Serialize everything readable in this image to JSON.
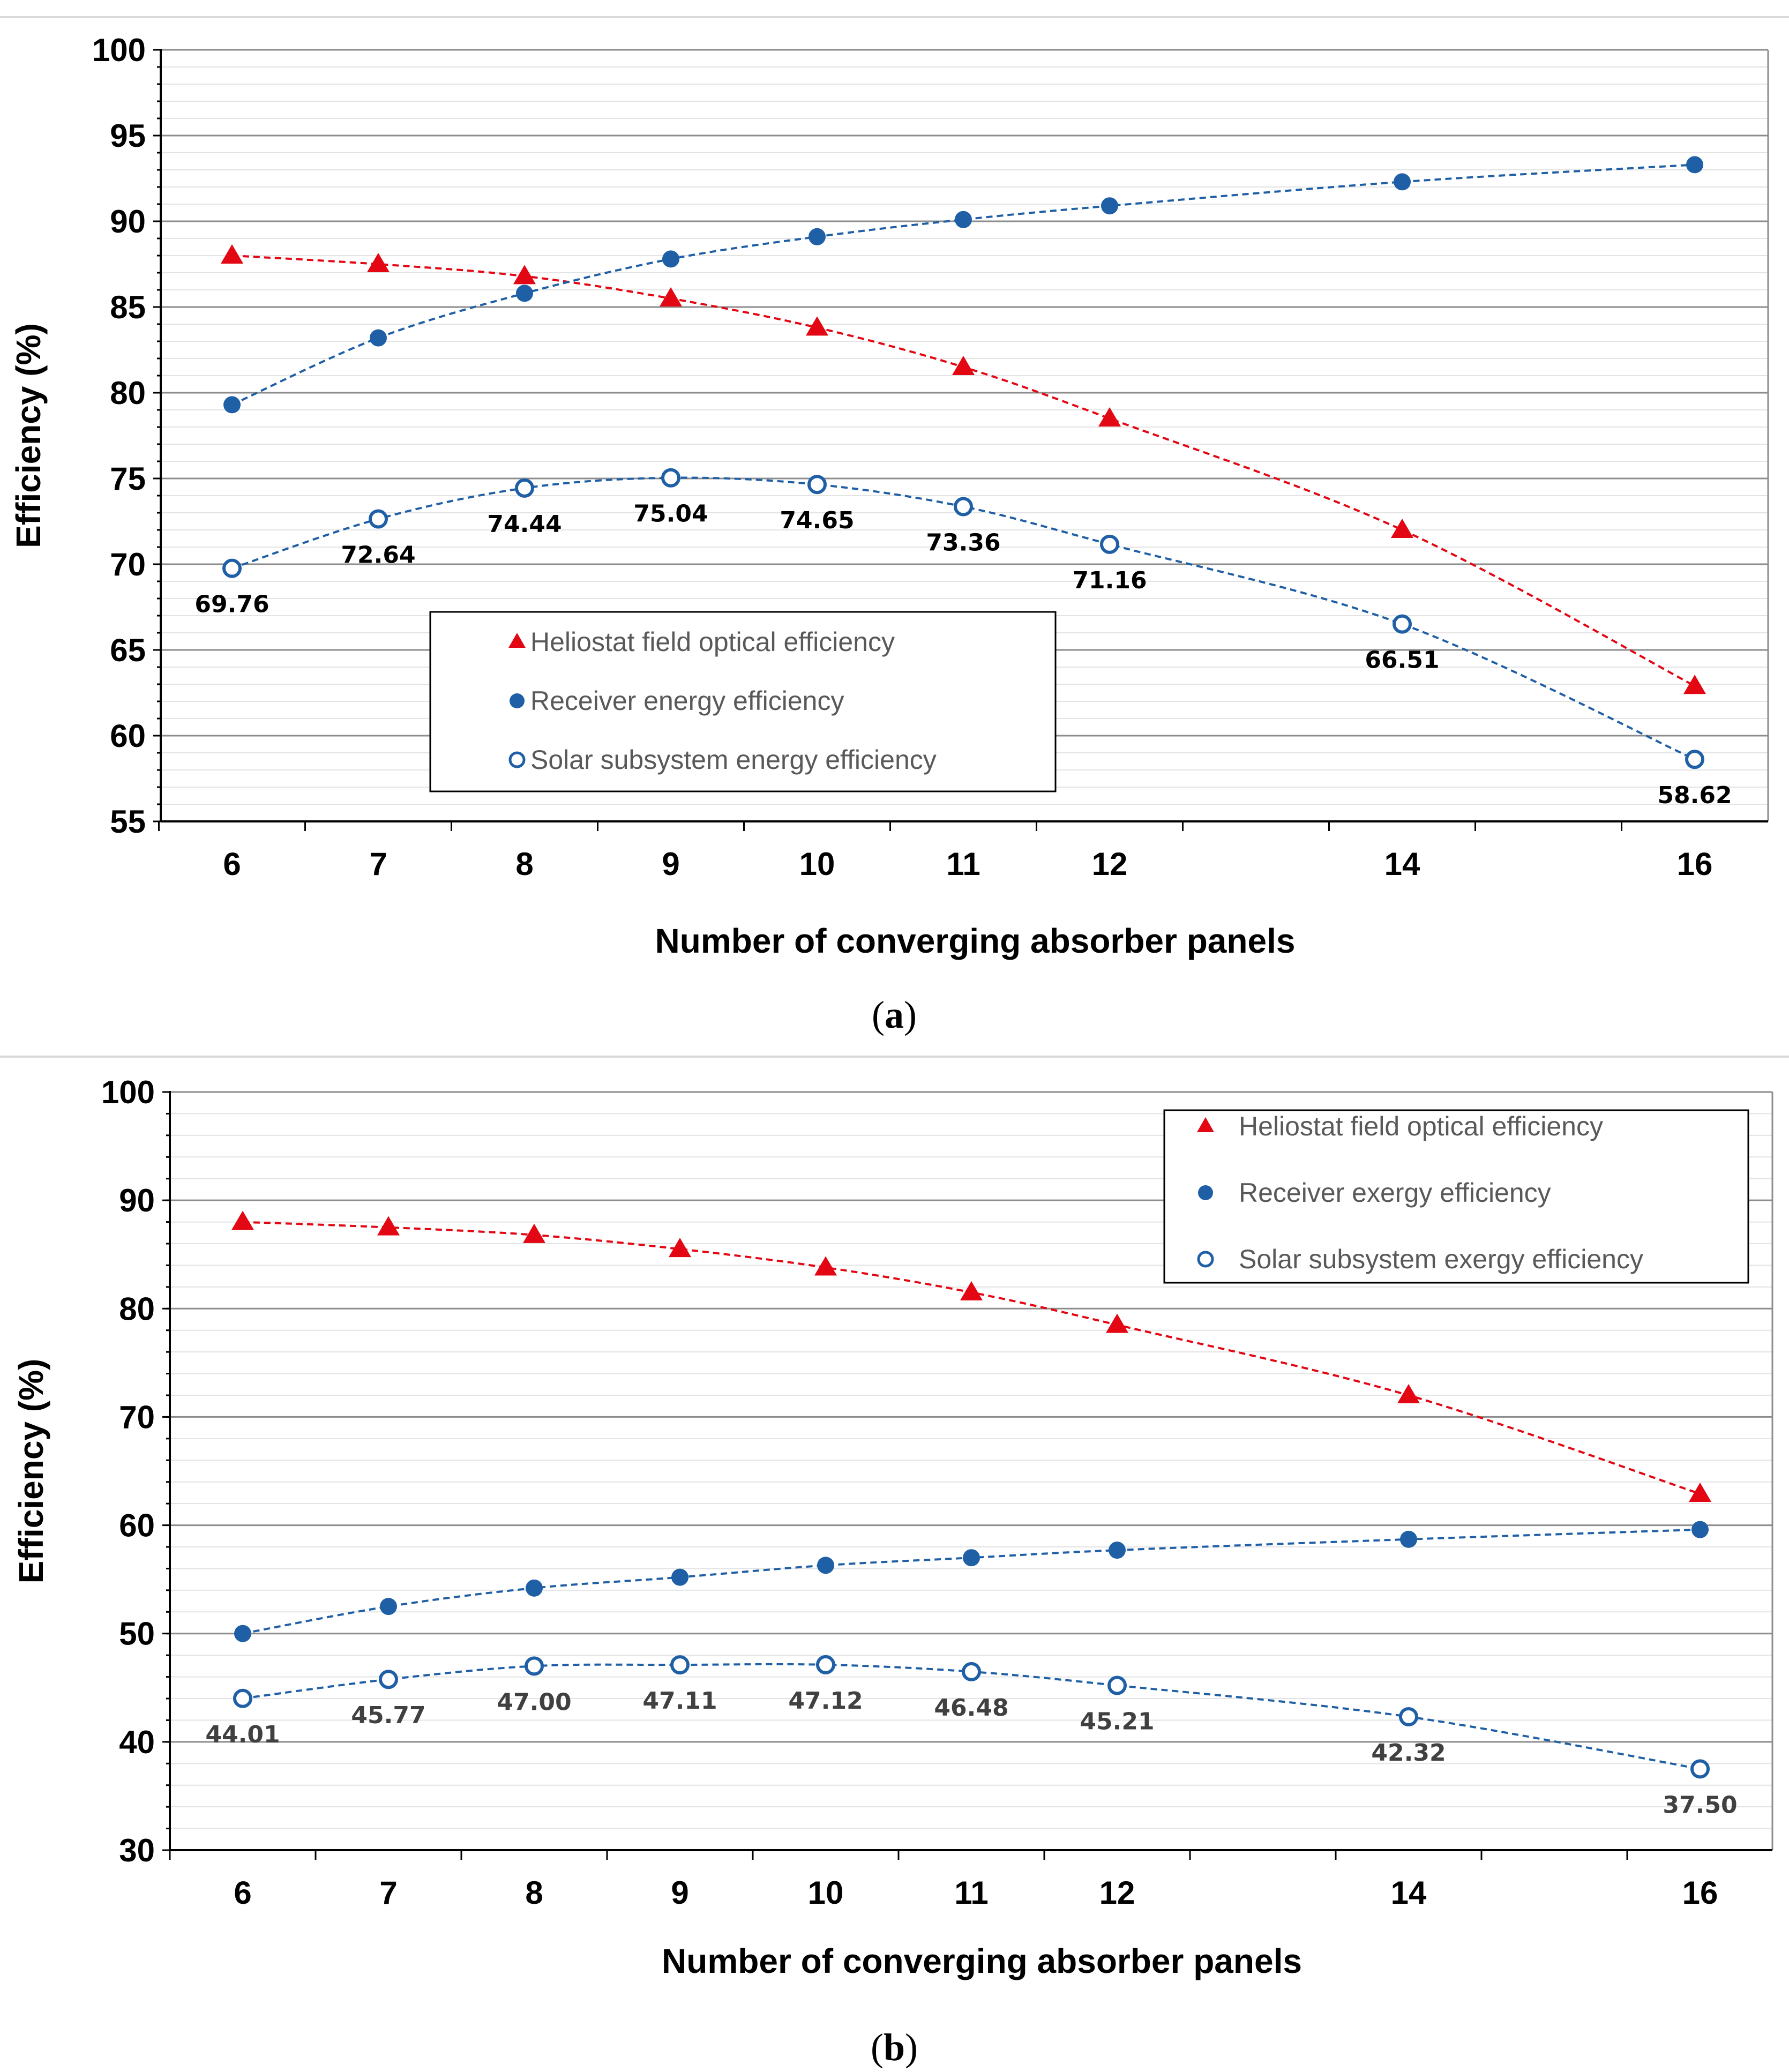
{
  "colors": {
    "heliostat": "#e30613",
    "receiver": "#1f5fa6",
    "label_a": "#000000",
    "label_b": "#404040"
  },
  "chart_data": [
    {
      "type": "line",
      "caption_letter": "a",
      "xlabel": "Number of converging absorber panels",
      "ylabel": "Efficiency (%)",
      "x": [
        6,
        7,
        8,
        9,
        10,
        11,
        12,
        14,
        16
      ],
      "xticks": [
        "6",
        "7",
        "8",
        "9",
        "10",
        "11",
        "12",
        "14",
        "16"
      ],
      "ylim": [
        55,
        100
      ],
      "yticks": [
        55,
        60,
        65,
        70,
        75,
        80,
        85,
        90,
        95,
        100
      ],
      "legend_position": "center-left",
      "series": [
        {
          "name": "Heliostat field optical efficiency",
          "marker": "triangle",
          "values": [
            88.0,
            87.5,
            86.8,
            85.5,
            83.8,
            81.5,
            78.5,
            72.0,
            62.9
          ]
        },
        {
          "name": "Receiver energy efficiency",
          "marker": "filled-circle",
          "values": [
            79.3,
            83.2,
            85.8,
            87.8,
            89.1,
            90.1,
            90.9,
            92.3,
            93.3
          ]
        },
        {
          "name": "Solar subsystem energy efficiency",
          "marker": "open-circle",
          "values": [
            69.76,
            72.64,
            74.44,
            75.04,
            74.65,
            73.36,
            71.16,
            66.51,
            58.62
          ],
          "labels": [
            "69.76",
            "72.64",
            "74.44",
            "75.04",
            "74.65",
            "73.36",
            "71.16",
            "66.51",
            "58.62"
          ]
        }
      ]
    },
    {
      "type": "line",
      "caption_letter": "b",
      "xlabel": "Number of converging absorber panels",
      "ylabel": "Efficiency (%)",
      "x": [
        6,
        7,
        8,
        9,
        10,
        11,
        12,
        14,
        16
      ],
      "xticks": [
        "6",
        "7",
        "8",
        "9",
        "10",
        "11",
        "12",
        "14",
        "16"
      ],
      "ylim": [
        30,
        100
      ],
      "yticks": [
        30,
        40,
        50,
        60,
        70,
        80,
        90,
        100
      ],
      "legend_position": "top-right",
      "series": [
        {
          "name": "Heliostat field optical efficiency",
          "marker": "triangle",
          "values": [
            88.0,
            87.5,
            86.8,
            85.5,
            83.8,
            81.5,
            78.5,
            72.0,
            62.9
          ]
        },
        {
          "name": "Receiver exergy efficiency",
          "marker": "filled-circle",
          "values": [
            50.0,
            52.5,
            54.2,
            55.2,
            56.3,
            57.0,
            57.7,
            58.7,
            59.6
          ]
        },
        {
          "name": "Solar subsystem exergy efficiency",
          "marker": "open-circle",
          "values": [
            44.01,
            45.77,
            47.0,
            47.11,
            47.12,
            46.48,
            45.21,
            42.32,
            37.5
          ],
          "labels": [
            "44.01",
            "45.77",
            "47.00",
            "47.11",
            "47.12",
            "46.48",
            "45.21",
            "42.32",
            "37.50"
          ]
        }
      ]
    }
  ]
}
